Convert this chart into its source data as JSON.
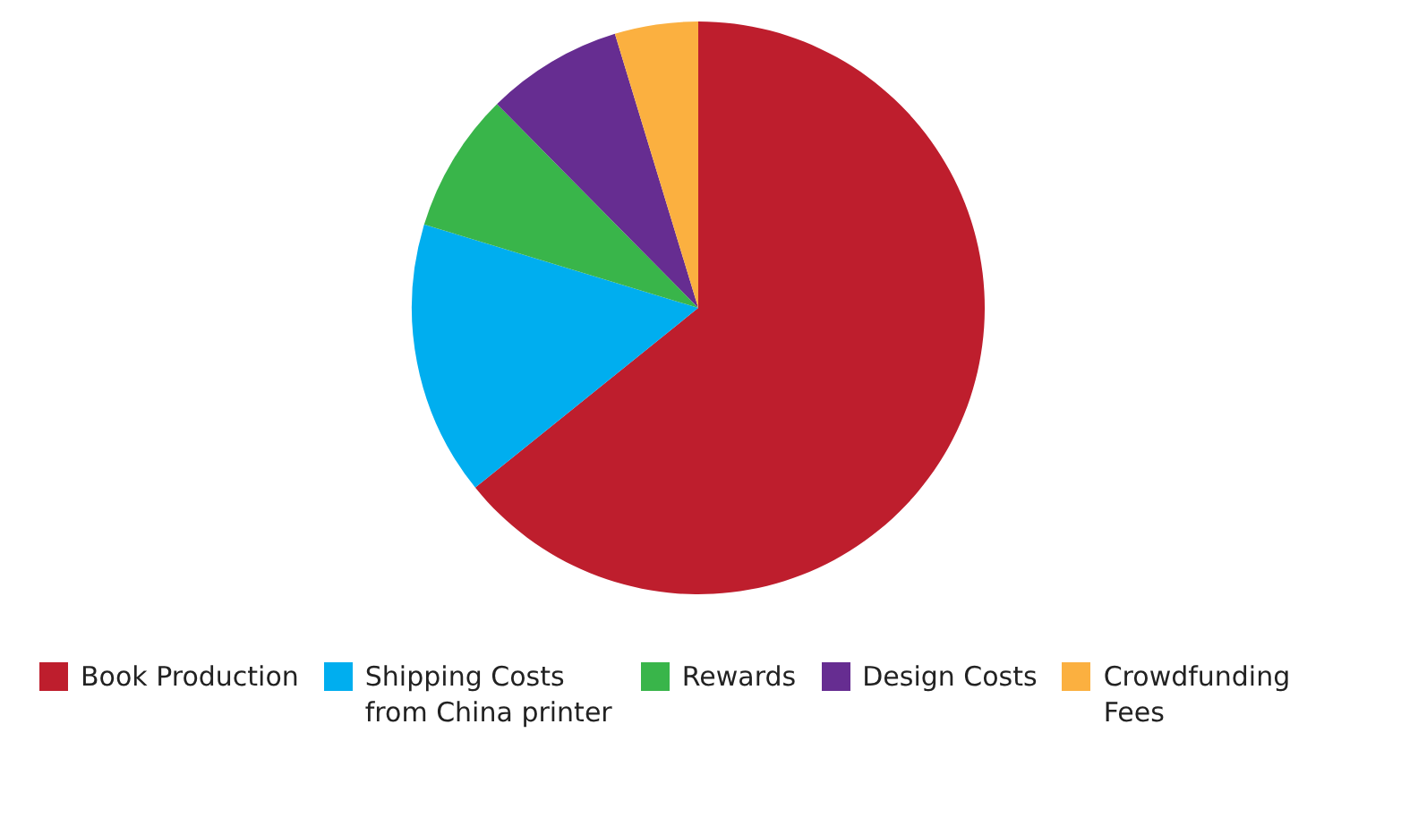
{
  "chart_data": {
    "type": "pie",
    "categories": [
      "Book Production",
      "Shipping Costs from China printer",
      "Rewards",
      "Design Costs",
      "Crowdfunding Fees"
    ],
    "values": [
      64.2,
      15.5,
      7.9,
      7.7,
      4.7
    ],
    "colors": [
      "#be1e2d",
      "#00aeef",
      "#39b54a",
      "#662d91",
      "#fbb040"
    ],
    "legend": "bottom"
  }
}
